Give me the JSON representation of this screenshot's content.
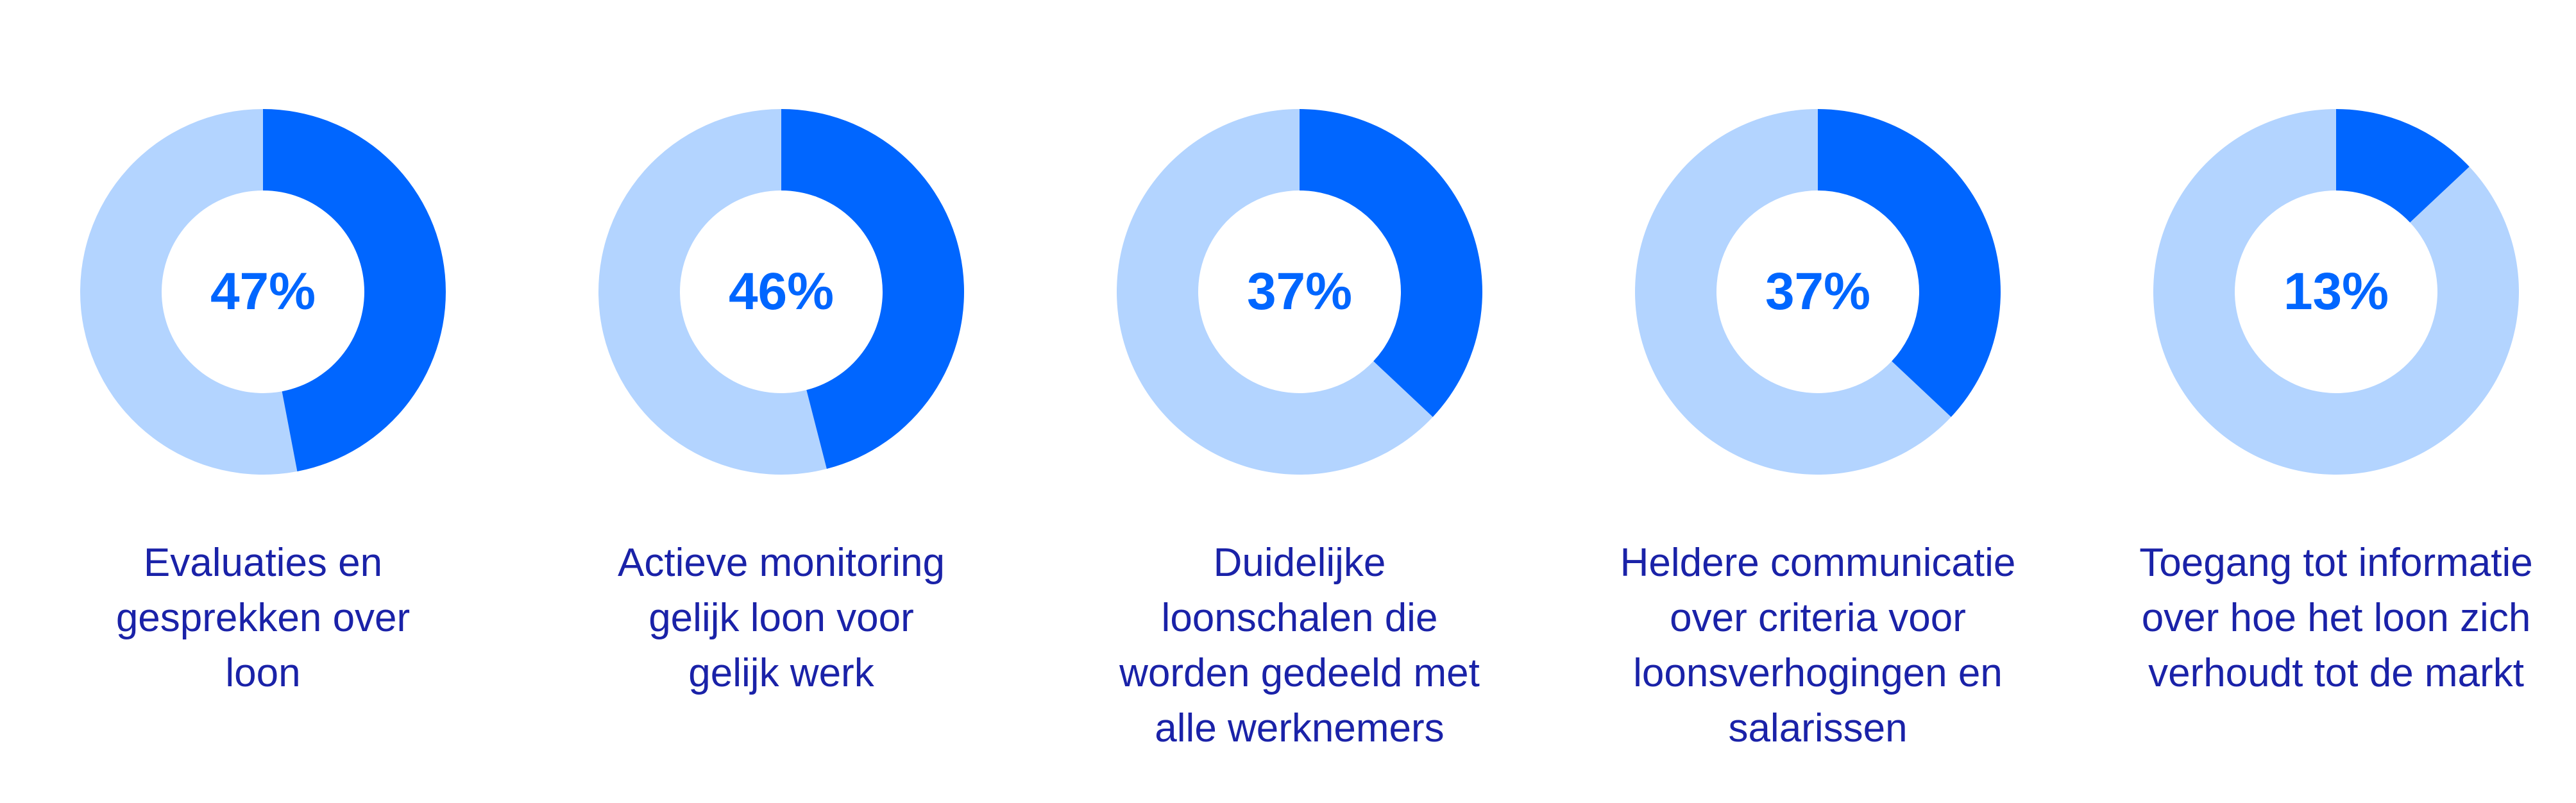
{
  "colors": {
    "value": "#0066ff",
    "remainder": "#b3d4ff",
    "label": "#0066ff",
    "caption": "#1a22a8"
  },
  "chart_data": {
    "type": "pie",
    "style": "donut",
    "unit": "%",
    "items": [
      {
        "value": 47,
        "label": "47%",
        "caption_lines": [
          "Evaluaties en",
          "gesprekken over",
          "loon"
        ]
      },
      {
        "value": 46,
        "label": "46%",
        "caption_lines": [
          "Actieve monitoring",
          "gelijk loon voor",
          "gelijk werk"
        ]
      },
      {
        "value": 37,
        "label": "37%",
        "caption_lines": [
          "Duidelijke",
          "loonschalen die",
          "worden gedeeld met",
          "alle werknemers"
        ]
      },
      {
        "value": 37,
        "label": "37%",
        "caption_lines": [
          "Heldere communicatie",
          "over criteria voor",
          "loonsverhogingen en",
          "salarissen"
        ]
      },
      {
        "value": 13,
        "label": "13%",
        "caption_lines": [
          "Toegang tot informatie",
          "over hoe het loon zich",
          "verhoudt tot de markt"
        ]
      }
    ]
  }
}
